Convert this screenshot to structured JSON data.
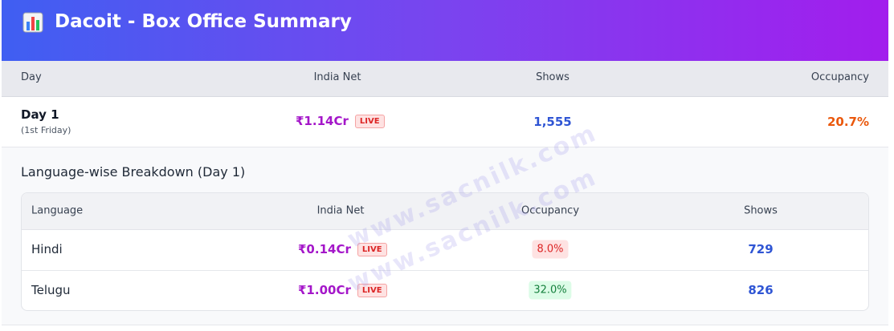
{
  "header": {
    "title": "Dacoit - Box Office Summary"
  },
  "summary": {
    "columns": [
      "Day",
      "India Net",
      "Shows",
      "Occupancy"
    ],
    "rows": [
      {
        "day": "Day 1",
        "note": "(1st Friday)",
        "india_net": "₹1.14Cr",
        "badge": "LIVE",
        "shows": "1,555",
        "occupancy": "20.7%"
      }
    ]
  },
  "breakdown": {
    "title": "Language-wise Breakdown (Day 1)",
    "columns": [
      "Language",
      "India Net",
      "Occupancy",
      "Shows"
    ],
    "rows": [
      {
        "language": "Hindi",
        "india_net": "₹0.14Cr",
        "badge": "LIVE",
        "occupancy": "8.0%",
        "shows": "729"
      },
      {
        "language": "Telugu",
        "india_net": "₹1.00Cr",
        "badge": "LIVE",
        "occupancy": "32.0%",
        "shows": "826"
      }
    ]
  },
  "watermark": [
    "www.sacnilk.com",
    "www.sacnilk.com"
  ]
}
